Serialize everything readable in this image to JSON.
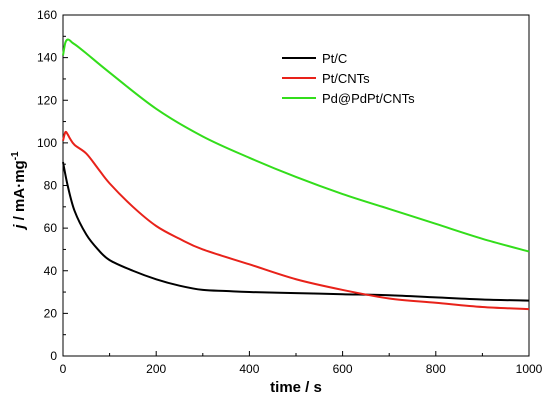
{
  "chart_data": {
    "type": "line",
    "xlabel": "time / s",
    "ylabel": {
      "main": "j / mA·mg",
      "superscript": "-1"
    },
    "xlim": [
      0,
      1000
    ],
    "ylim": [
      0,
      160
    ],
    "x_ticks": [
      "0",
      "200",
      "400",
      "600",
      "800",
      "1000"
    ],
    "y_ticks": [
      "0",
      "20",
      "40",
      "60",
      "80",
      "100",
      "120",
      "140",
      "160"
    ],
    "grid": false,
    "legend_position": "top-right",
    "series": [
      {
        "name": "Pt/C",
        "color": "#000000",
        "x": [
          0,
          10,
          25,
          50,
          75,
          100,
          150,
          200,
          250,
          300,
          350,
          400,
          500,
          600,
          700,
          800,
          900,
          1000
        ],
        "y": [
          91,
          80,
          68,
          57,
          50,
          45,
          40,
          36,
          33,
          31,
          30.5,
          30,
          29.5,
          29,
          28.5,
          27.5,
          26.5,
          26
        ]
      },
      {
        "name": "Pt/CNTs",
        "color": "#e8221a",
        "x": [
          0,
          5,
          10,
          15,
          25,
          50,
          75,
          100,
          150,
          200,
          250,
          300,
          400,
          500,
          600,
          700,
          800,
          900,
          1000
        ],
        "y": [
          101,
          105,
          104,
          102,
          99,
          95,
          88,
          81,
          70,
          61,
          55,
          50,
          43,
          36,
          31,
          27,
          25,
          23,
          22
        ]
      },
      {
        "name": "Pd@PdPt/CNTs",
        "color": "#33dd1b",
        "x": [
          0,
          5,
          10,
          15,
          20,
          30,
          50,
          100,
          200,
          300,
          400,
          500,
          600,
          700,
          800,
          900,
          1000
        ],
        "y": [
          141,
          147,
          148.5,
          148,
          147,
          145.5,
          142,
          133,
          116,
          103,
          93,
          84,
          76,
          69,
          62,
          55,
          49
        ]
      }
    ]
  }
}
